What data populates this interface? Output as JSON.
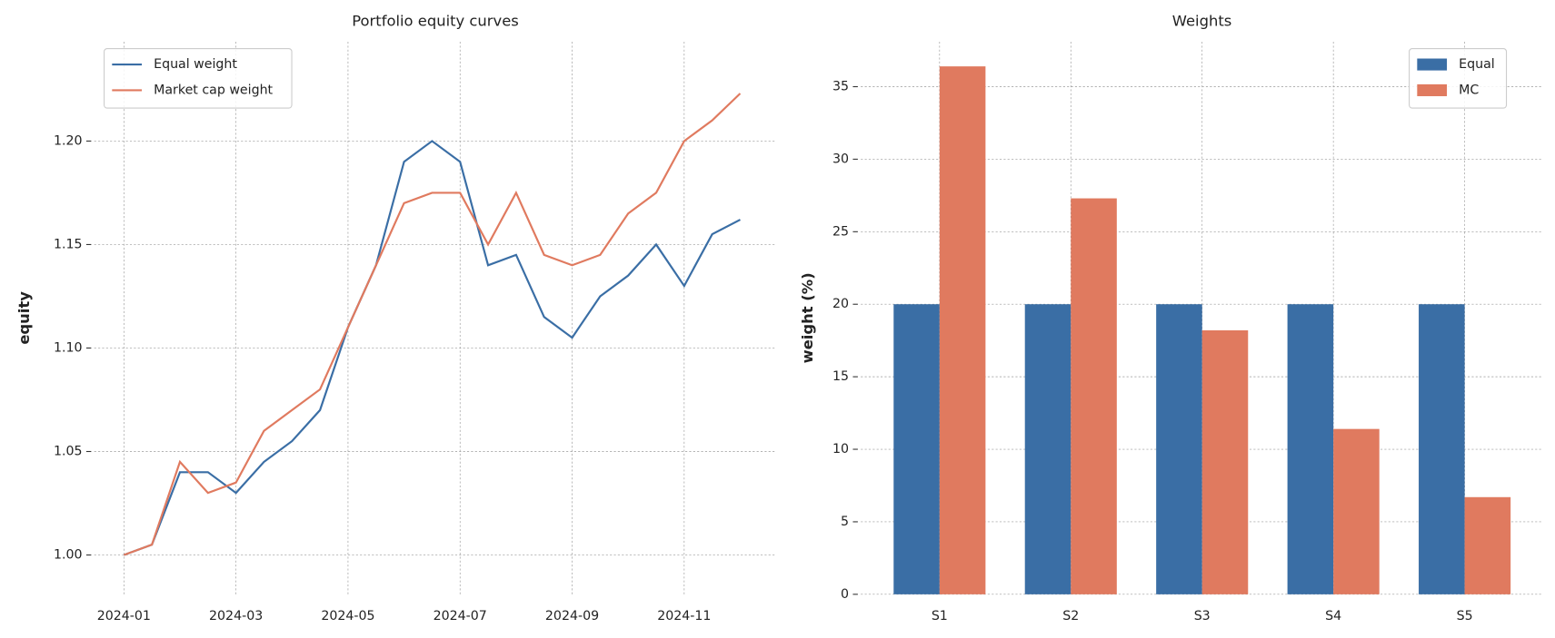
{
  "chart_data": [
    {
      "type": "line",
      "title": "Portfolio equity curves",
      "y_label": "equity",
      "x": [
        0,
        0.5,
        1,
        1.5,
        2,
        2.5,
        3,
        3.5,
        4,
        4.5,
        5,
        5.5,
        6,
        6.5,
        7,
        7.5,
        8,
        8.5,
        9,
        9.5,
        10,
        10.5,
        11
      ],
      "xlim": [
        -0.53,
        11.63
      ],
      "xticks": [
        {
          "value": 0,
          "label": "2024-01"
        },
        {
          "value": 2,
          "label": "2024-03"
        },
        {
          "value": 4,
          "label": "2024-05"
        },
        {
          "value": 6,
          "label": "2024-07"
        },
        {
          "value": 8,
          "label": "2024-09"
        },
        {
          "value": 10,
          "label": "2024-11"
        }
      ],
      "ylim": [
        0.981,
        1.248
      ],
      "yticks": [
        {
          "value": 1,
          "label": "1.00"
        },
        1.05,
        {
          "value": 1.1,
          "label": "1.10"
        },
        1.15,
        {
          "value": 1.2,
          "label": "1.20"
        }
      ],
      "grid": true,
      "legend": "upper left",
      "series": [
        {
          "name": "Equal weight",
          "color": "#3a6ea5",
          "values": [
            1.0,
            1.005,
            1.04,
            1.04,
            1.03,
            1.045,
            1.055,
            1.07,
            1.11,
            1.14,
            1.19,
            1.2,
            1.19,
            1.14,
            1.145,
            1.115,
            1.105,
            1.125,
            1.135,
            1.15,
            1.13,
            1.155,
            1.162
          ]
        },
        {
          "name": "Market cap weight",
          "color": "#e07a5f",
          "values": [
            1.0,
            1.005,
            1.045,
            1.03,
            1.035,
            1.06,
            1.07,
            1.08,
            1.11,
            1.14,
            1.17,
            1.175,
            1.175,
            1.15,
            1.175,
            1.145,
            1.14,
            1.145,
            1.165,
            1.175,
            1.2,
            1.21,
            1.223
          ]
        }
      ]
    },
    {
      "type": "bar",
      "title": "Weights",
      "y_label": "weight (%)",
      "categories": [
        "S1",
        "S2",
        "S3",
        "S4",
        "S5"
      ],
      "ylim": [
        0,
        38.1
      ],
      "yticks": [
        0,
        5,
        10,
        15,
        20,
        25,
        30,
        35
      ],
      "grid": true,
      "legend": "upper right",
      "series": [
        {
          "name": "Equal",
          "color": "#3a6ea5",
          "values": [
            20,
            20,
            20,
            20,
            20
          ]
        },
        {
          "name": "MC",
          "color": "#e07a5f",
          "values": [
            36.4,
            27.3,
            18.2,
            11.4,
            6.7
          ]
        }
      ]
    }
  ]
}
